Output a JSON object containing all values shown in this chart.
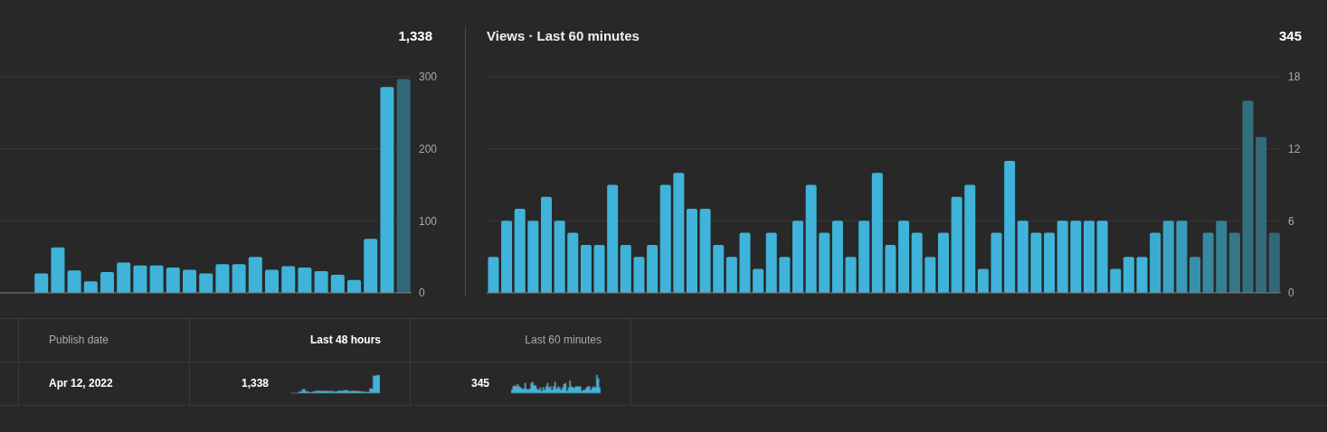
{
  "chart_data": [
    {
      "type": "bar",
      "annotations": [
        "1,338"
      ],
      "categories": [
        null,
        null,
        null,
        null,
        null,
        null,
        null,
        null,
        null,
        null,
        null,
        null,
        null,
        null,
        null,
        null,
        null,
        null,
        null,
        null,
        null,
        null,
        null,
        null,
        null
      ],
      "values": [
        0,
        0,
        27,
        63,
        31,
        16,
        29,
        42,
        38,
        38,
        35,
        32,
        27,
        40,
        40,
        50,
        32,
        37,
        35,
        30,
        25,
        18,
        75,
        286,
        297
      ],
      "colors": [
        "#3fb3d9",
        "#3fb3d9",
        "#3fb3d9",
        "#3fb3d9",
        "#3fb3d9",
        "#3fb3d9",
        "#3fb3d9",
        "#3fb3d9",
        "#3fb3d9",
        "#3fb3d9",
        "#3fb3d9",
        "#3fb3d9",
        "#3fb3d9",
        "#3fb3d9",
        "#3fb3d9",
        "#3fb3d9",
        "#3fb3d9",
        "#3fb3d9",
        "#3fb3d9",
        "#3fb3d9",
        "#3fb3d9",
        "#3fb3d9",
        "#3fb3d9",
        "#3fb3d9",
        "#336878"
      ],
      "ylim": [
        0,
        300
      ],
      "yticks": [
        0,
        100,
        200,
        300
      ],
      "grid": "y"
    },
    {
      "type": "bar",
      "title": "Views · Last 60 minutes",
      "annotations": [
        "345"
      ],
      "categories": [
        null,
        null,
        null,
        null,
        null,
        null,
        null,
        null,
        null,
        null,
        null,
        null,
        null,
        null,
        null,
        null,
        null,
        null,
        null,
        null,
        null,
        null,
        null,
        null,
        null,
        null,
        null,
        null,
        null,
        null,
        null,
        null,
        null,
        null,
        null,
        null,
        null,
        null,
        null,
        null,
        null,
        null,
        null,
        null,
        null,
        null,
        null,
        null,
        null,
        null,
        null,
        null,
        null,
        null,
        null,
        null,
        null,
        null,
        null,
        null
      ],
      "values": [
        3,
        6,
        7,
        6,
        8,
        6,
        5,
        4,
        4,
        9,
        4,
        3,
        4,
        9,
        10,
        7,
        7,
        4,
        3,
        5,
        2,
        5,
        3,
        6,
        9,
        5,
        6,
        3,
        6,
        10,
        4,
        6,
        5,
        3,
        5,
        8,
        9,
        2,
        5,
        11,
        6,
        5,
        5,
        6,
        6,
        6,
        6,
        2,
        3,
        3,
        5,
        6,
        6,
        3,
        5,
        6,
        5,
        16,
        13,
        5
      ],
      "colors": [
        "#3fb3d9",
        "#3fb3d9",
        "#3fb3d9",
        "#3fb3d9",
        "#3fb3d9",
        "#3fb3d9",
        "#3fb3d9",
        "#3fb3d9",
        "#3fb3d9",
        "#3fb3d9",
        "#3fb3d9",
        "#3fb3d9",
        "#3fb3d9",
        "#3fb3d9",
        "#3fb3d9",
        "#3fb3d9",
        "#3fb3d9",
        "#3fb3d9",
        "#3fb3d9",
        "#3fb3d9",
        "#3fb3d9",
        "#3fb3d9",
        "#3fb3d9",
        "#3fb3d9",
        "#3fb3d9",
        "#3fb3d9",
        "#3fb3d9",
        "#3fb3d9",
        "#3fb3d9",
        "#3fb3d9",
        "#3fb3d9",
        "#3fb3d9",
        "#3fb3d9",
        "#3fb3d9",
        "#3fb3d9",
        "#3fb3d9",
        "#3fb3d9",
        "#3fb3d9",
        "#3fb3d9",
        "#3fb3d9",
        "#3fb3d9",
        "#3fb3d9",
        "#3fb3d9",
        "#3fb3d9",
        "#3fb3d9",
        "#3fb3d9",
        "#3fb3d9",
        "#3fb3d9",
        "#3fb3d9",
        "#3fb3d9",
        "#3cabd0",
        "#3aa2c4",
        "#399ab8",
        "#3891ac",
        "#3788a0",
        "#357f94",
        "#347888",
        "#33707e",
        "#336b7b",
        "#336878"
      ],
      "ylim": [
        0,
        18
      ],
      "yticks": [
        0,
        6,
        12,
        18
      ],
      "grid": "y"
    },
    {
      "type": "other",
      "annotations": [
        "Publish date",
        "Last 48 hours",
        "Last 60 minutes",
        "Apr 12, 2022",
        "1,338",
        "345"
      ]
    }
  ]
}
